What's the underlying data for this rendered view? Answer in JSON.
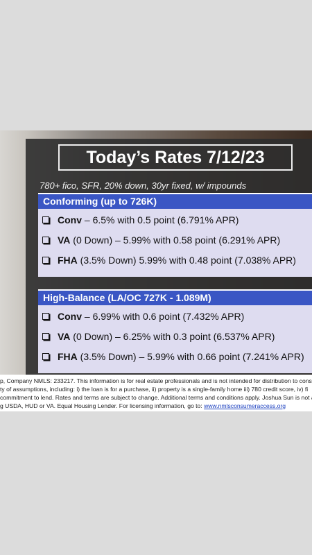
{
  "header": {
    "title": "Today’s Rates 7/12/23",
    "subtitle": "780+ fico, SFR, 20% down, 30yr fixed, w/ impounds"
  },
  "sections": [
    {
      "heading": "Conforming (up to 726K)",
      "items": [
        {
          "label": "Conv",
          "detail": " – 6.5% with 0.5 point (6.791% APR)"
        },
        {
          "label": "VA",
          "detail": " (0 Down) – 5.99% with 0.58 point (6.291% APR)"
        },
        {
          "label": "FHA",
          "detail": " (3.5% Down) 5.99% with 0.48 point (7.038% APR)"
        }
      ]
    },
    {
      "heading": "High-Balance (LA/OC 727K - 1.089M)",
      "items": [
        {
          "label": "Conv",
          "detail": " – 6.99% with 0.6 point (7.432% APR)"
        },
        {
          "label": "VA",
          "detail": " (0 Down) – 6.25% with 0.3 point (6.537% APR)"
        },
        {
          "label": "FHA",
          "detail": " (3.5% Down) – 5.99% with 0.66 point (7.241% APR)"
        }
      ]
    }
  ],
  "disclaimer": {
    "lines": [
      "p, Company NMLS: 233217. This information is for real estate professionals and is not intended for distribution to cons",
      "ty of assumptions, including: i) the loan is for a purchase, ii) property is a single-family home iii) 780 credit score, iv) fi",
      " commitment to lend. Rates and terms are subject to change. Additional terms and conditions apply. Joshua Sun is not aff",
      "g USDA, HUD or VA. Equal Housing Lender. For licensing information, go to: "
    ],
    "link": "www.nmlsconsumeraccess.org"
  }
}
